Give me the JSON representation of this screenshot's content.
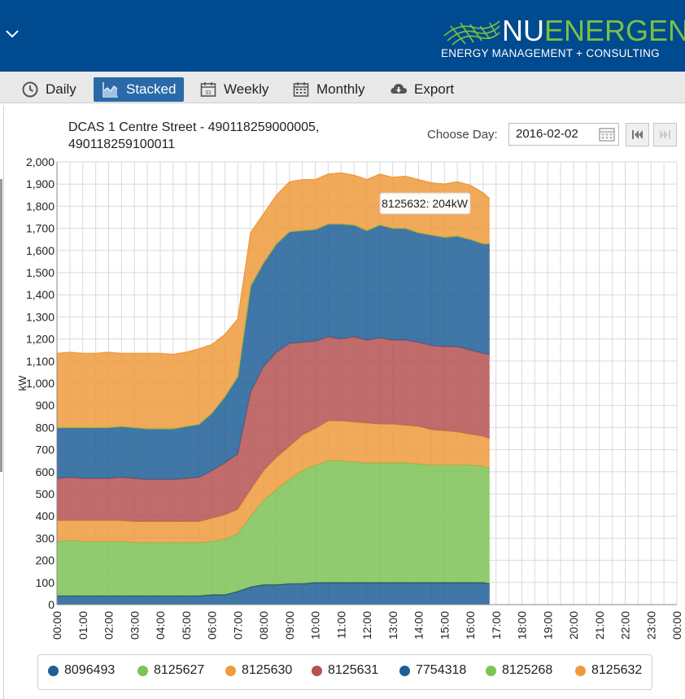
{
  "header": {
    "logo_nu": "NU",
    "logo_energen": "ENERGEN",
    "logo_tagline": "ENERGY MANAGEMENT + CONSULTING"
  },
  "toolbar": {
    "buttons": [
      {
        "label": "Daily",
        "icon": "clock-icon"
      },
      {
        "label": "Stacked",
        "icon": "area-chart-icon"
      },
      {
        "label": "Weekly",
        "icon": "calendar-icon"
      },
      {
        "label": "Monthly",
        "icon": "calendar-grid-icon"
      },
      {
        "label": "Export",
        "icon": "cloud-download-icon"
      }
    ],
    "active": "Stacked"
  },
  "controls": {
    "choose_day_label": "Choose Day:",
    "date_value": "2016-02-02"
  },
  "chart_data": {
    "type": "area",
    "title": "DCAS 1 Centre Street - 490118259000005, 490118259100011",
    "xlabel": "",
    "ylabel": "kW",
    "ylim": [
      0,
      2000
    ],
    "ytick_step": 100,
    "x_ticks": [
      "00:00",
      "01:00",
      "02:00",
      "03:00",
      "04:00",
      "05:00",
      "06:00",
      "07:00",
      "08:00",
      "09:00",
      "10:00",
      "11:00",
      "12:00",
      "13:00",
      "14:00",
      "15:00",
      "16:00",
      "17:00",
      "18:00",
      "19:00",
      "20:00",
      "21:00",
      "22:00",
      "23:00",
      "00:00"
    ],
    "x_hours": [
      0,
      0.5,
      1,
      1.5,
      2,
      2.5,
      3,
      3.5,
      4,
      4.5,
      5,
      5.5,
      6,
      6.5,
      7,
      7.5,
      8,
      8.5,
      9,
      9.5,
      10,
      10.5,
      11,
      11.5,
      12,
      12.5,
      13,
      13.5,
      14,
      14.5,
      15,
      15.5,
      16,
      16.5,
      16.75
    ],
    "grid": true,
    "stacked": true,
    "series": [
      {
        "name": "8096493",
        "color": "#1f5f96",
        "values": [
          40,
          40,
          40,
          40,
          40,
          40,
          40,
          40,
          40,
          40,
          40,
          40,
          45,
          45,
          60,
          80,
          90,
          90,
          95,
          95,
          100,
          100,
          100,
          100,
          100,
          100,
          100,
          100,
          100,
          100,
          100,
          100,
          100,
          100,
          95
        ]
      },
      {
        "name": "8125627",
        "color": "#7dc356",
        "values": [
          245,
          250,
          245,
          245,
          245,
          245,
          240,
          240,
          240,
          240,
          240,
          240,
          240,
          250,
          260,
          320,
          380,
          430,
          470,
          510,
          530,
          550,
          550,
          545,
          540,
          540,
          540,
          540,
          535,
          530,
          530,
          530,
          530,
          525,
          520
        ]
      },
      {
        "name": "8125630",
        "color": "#ef9a3d",
        "values": [
          95,
          90,
          95,
          95,
          95,
          95,
          95,
          95,
          95,
          95,
          95,
          95,
          105,
          110,
          110,
          120,
          135,
          145,
          150,
          160,
          165,
          180,
          180,
          180,
          180,
          175,
          175,
          170,
          170,
          160,
          155,
          150,
          140,
          135,
          135
        ]
      },
      {
        "name": "8125631",
        "color": "#b55252",
        "values": [
          190,
          195,
          190,
          190,
          190,
          195,
          195,
          190,
          190,
          190,
          195,
          200,
          215,
          235,
          250,
          440,
          470,
          475,
          465,
          420,
          395,
          380,
          370,
          385,
          375,
          390,
          380,
          385,
          380,
          380,
          380,
          385,
          380,
          375,
          380
        ]
      },
      {
        "name": "7754318",
        "color": "#1f5f96",
        "values": [
          230,
          225,
          230,
          230,
          230,
          230,
          230,
          230,
          230,
          230,
          235,
          240,
          260,
          300,
          350,
          480,
          470,
          490,
          505,
          505,
          505,
          510,
          520,
          505,
          495,
          510,
          505,
          505,
          495,
          500,
          495,
          500,
          500,
          495,
          500
        ]
      },
      {
        "name": "8125268",
        "color": "#7dc356",
        "values": [
          0,
          0,
          0,
          0,
          0,
          0,
          0,
          0,
          0,
          0,
          0,
          0,
          0,
          0,
          0,
          0,
          0,
          0,
          0,
          0,
          0,
          0,
          0,
          0,
          0,
          0,
          0,
          0,
          0,
          0,
          0,
          0,
          0,
          0,
          0
        ]
      },
      {
        "name": "8125632",
        "color": "#ef9a3d",
        "values": [
          335,
          340,
          335,
          335,
          340,
          330,
          335,
          340,
          340,
          335,
          335,
          340,
          310,
          280,
          260,
          240,
          220,
          220,
          225,
          230,
          225,
          225,
          230,
          225,
          230,
          230,
          230,
          235,
          240,
          235,
          240,
          245,
          245,
          230,
          204
        ]
      }
    ],
    "tooltip": {
      "series": "8125632",
      "text": "8125632: 204kW"
    }
  }
}
